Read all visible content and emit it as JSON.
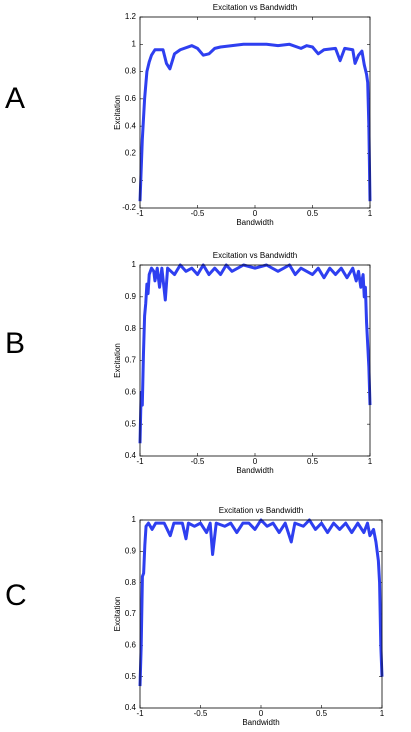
{
  "chart_data": [
    {
      "type": "line",
      "panel_label": "A",
      "title": "Excitation vs Bandwidth",
      "x_label": "Bandwidth",
      "y_label": "Excitation",
      "color": "#2e3ff0",
      "grid": false,
      "xlim": [
        -1,
        1
      ],
      "xticks": [
        -1,
        -0.5,
        0,
        0.5,
        1
      ],
      "ylim": [
        -0.2,
        1.2
      ],
      "yticks": [
        -0.2,
        0,
        0.2,
        0.4,
        0.6,
        0.8,
        1,
        1.2
      ],
      "x": [
        -1,
        -0.98,
        -0.96,
        -0.94,
        -0.92,
        -0.9,
        -0.87,
        -0.8,
        -0.77,
        -0.74,
        -0.7,
        -0.65,
        -0.55,
        -0.5,
        -0.45,
        -0.4,
        -0.35,
        -0.3,
        -0.2,
        -0.1,
        0,
        0.1,
        0.2,
        0.3,
        0.4,
        0.45,
        0.5,
        0.55,
        0.6,
        0.7,
        0.74,
        0.78,
        0.85,
        0.87,
        0.9,
        0.93,
        0.95,
        0.97,
        0.98,
        0.99,
        1.0
      ],
      "values": [
        -0.15,
        0.3,
        0.6,
        0.8,
        0.87,
        0.92,
        0.96,
        0.96,
        0.86,
        0.82,
        0.93,
        0.96,
        0.99,
        0.97,
        0.92,
        0.93,
        0.97,
        0.98,
        0.99,
        1.0,
        1.0,
        1.0,
        0.99,
        1.0,
        0.97,
        0.99,
        0.98,
        0.93,
        0.96,
        0.97,
        0.88,
        0.97,
        0.96,
        0.86,
        0.92,
        0.95,
        0.85,
        0.78,
        0.72,
        0.4,
        -0.15
      ]
    },
    {
      "type": "line",
      "panel_label": "B",
      "title": "Excitation vs Bandwidth",
      "x_label": "Bandwidth",
      "y_label": "Excitation",
      "color": "#2e3ff0",
      "grid": false,
      "xlim": [
        -1,
        1
      ],
      "xticks": [
        -1,
        -0.5,
        0,
        0.5,
        1
      ],
      "ylim": [
        0.4,
        1
      ],
      "yticks": [
        0.4,
        0.5,
        0.6,
        0.7,
        0.8,
        0.9,
        1
      ],
      "x": [
        -1,
        -0.99,
        -0.98,
        -0.97,
        -0.96,
        -0.95,
        -0.94,
        -0.93,
        -0.92,
        -0.9,
        -0.88,
        -0.87,
        -0.85,
        -0.83,
        -0.81,
        -0.78,
        -0.76,
        -0.7,
        -0.65,
        -0.6,
        -0.55,
        -0.5,
        -0.45,
        -0.4,
        -0.35,
        -0.3,
        -0.25,
        -0.2,
        -0.1,
        0,
        0.1,
        0.2,
        0.3,
        0.35,
        0.4,
        0.5,
        0.55,
        0.6,
        0.65,
        0.7,
        0.75,
        0.8,
        0.85,
        0.88,
        0.9,
        0.92,
        0.94,
        0.95,
        0.96,
        0.97,
        0.98,
        0.99,
        1.0
      ],
      "values": [
        0.44,
        0.6,
        0.56,
        0.72,
        0.84,
        0.88,
        0.94,
        0.91,
        0.97,
        0.99,
        0.98,
        0.95,
        0.99,
        0.93,
        0.99,
        0.89,
        0.99,
        0.97,
        1.0,
        0.98,
        0.99,
        0.97,
        1.0,
        0.97,
        0.99,
        0.97,
        1.0,
        0.98,
        1.0,
        0.99,
        1.0,
        0.98,
        1.0,
        0.97,
        0.99,
        0.97,
        0.99,
        0.96,
        0.99,
        0.97,
        0.99,
        0.96,
        0.99,
        0.95,
        0.98,
        0.93,
        0.97,
        0.9,
        0.93,
        0.82,
        0.75,
        0.68,
        0.56
      ]
    },
    {
      "type": "line",
      "panel_label": "C",
      "title": "Excitation vs Bandwidth",
      "x_label": "Bandwidth",
      "y_label": "Excitation",
      "color": "#2e3ff0",
      "grid": false,
      "xlim": [
        -1,
        1
      ],
      "xticks": [
        -1,
        -0.5,
        0,
        0.5,
        1
      ],
      "ylim": [
        0.4,
        1
      ],
      "yticks": [
        0.4,
        0.5,
        0.6,
        0.7,
        0.8,
        0.9,
        1
      ],
      "x": [
        -1,
        -0.99,
        -0.98,
        -0.97,
        -0.96,
        -0.95,
        -0.93,
        -0.9,
        -0.87,
        -0.8,
        -0.75,
        -0.72,
        -0.65,
        -0.62,
        -0.6,
        -0.55,
        -0.5,
        -0.45,
        -0.42,
        -0.4,
        -0.37,
        -0.3,
        -0.25,
        -0.2,
        -0.15,
        -0.1,
        -0.05,
        0,
        0.05,
        0.1,
        0.15,
        0.2,
        0.25,
        0.28,
        0.35,
        0.4,
        0.45,
        0.5,
        0.55,
        0.6,
        0.65,
        0.7,
        0.75,
        0.8,
        0.85,
        0.88,
        0.9,
        0.93,
        0.95,
        0.97,
        0.98,
        0.99,
        1.0
      ],
      "values": [
        0.47,
        0.6,
        0.82,
        0.83,
        0.92,
        0.98,
        0.99,
        0.97,
        0.99,
        0.99,
        0.95,
        0.99,
        0.99,
        0.94,
        0.99,
        0.98,
        0.99,
        0.96,
        0.99,
        0.89,
        0.99,
        0.98,
        0.99,
        0.96,
        0.99,
        0.99,
        0.97,
        1.0,
        0.98,
        0.99,
        0.96,
        0.99,
        0.93,
        0.99,
        0.98,
        1.0,
        0.97,
        0.99,
        0.96,
        0.99,
        0.97,
        0.99,
        0.96,
        0.99,
        0.96,
        0.99,
        0.95,
        0.97,
        0.93,
        0.87,
        0.8,
        0.6,
        0.5
      ]
    }
  ]
}
